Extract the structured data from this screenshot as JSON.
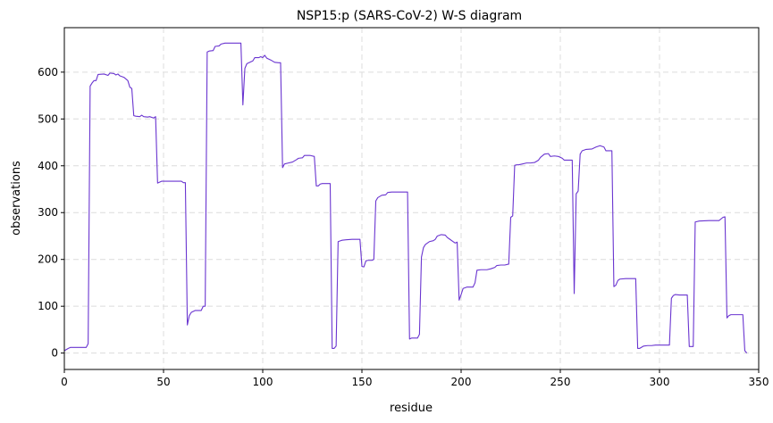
{
  "chart_data": {
    "type": "line",
    "title": "NSP15:p (SARS-CoV-2) W-S diagram",
    "xlabel": "residue",
    "ylabel": "observations",
    "xlim": [
      0,
      350
    ],
    "ylim": [
      -35,
      695
    ],
    "xticks": [
      0,
      50,
      100,
      150,
      200,
      250,
      300,
      350
    ],
    "yticks": [
      0,
      100,
      200,
      300,
      400,
      500,
      600
    ],
    "grid": true,
    "legend": "none",
    "series": [
      {
        "color": "#6a35d0",
        "points": [
          [
            0,
            5
          ],
          [
            2,
            10
          ],
          [
            3,
            12
          ],
          [
            7,
            12
          ],
          [
            11,
            12
          ],
          [
            12,
            20
          ],
          [
            13,
            570
          ],
          [
            14,
            577
          ],
          [
            15,
            582
          ],
          [
            16,
            582
          ],
          [
            17,
            595
          ],
          [
            20,
            596
          ],
          [
            22,
            593
          ],
          [
            23,
            598
          ],
          [
            25,
            597
          ],
          [
            26,
            594
          ],
          [
            27,
            596
          ],
          [
            28,
            592
          ],
          [
            30,
            589
          ],
          [
            32,
            582
          ],
          [
            33,
            568
          ],
          [
            34,
            565
          ],
          [
            35,
            507
          ],
          [
            36,
            506
          ],
          [
            38,
            505
          ],
          [
            39,
            508
          ],
          [
            40,
            505
          ],
          [
            42,
            504
          ],
          [
            43,
            505
          ],
          [
            45,
            502
          ],
          [
            46,
            505
          ],
          [
            47,
            363
          ],
          [
            48,
            365
          ],
          [
            49,
            367
          ],
          [
            55,
            367
          ],
          [
            59,
            367
          ],
          [
            60,
            364
          ],
          [
            61,
            364
          ],
          [
            62,
            60
          ],
          [
            63,
            80
          ],
          [
            64,
            87
          ],
          [
            66,
            91
          ],
          [
            69,
            91
          ],
          [
            70,
            100
          ],
          [
            71,
            100
          ],
          [
            72,
            643
          ],
          [
            73,
            645
          ],
          [
            75,
            646
          ],
          [
            76,
            655
          ],
          [
            78,
            656
          ],
          [
            79,
            660
          ],
          [
            81,
            662
          ],
          [
            88,
            662
          ],
          [
            89,
            662
          ],
          [
            90,
            530
          ],
          [
            91,
            608
          ],
          [
            92,
            618
          ],
          [
            94,
            622
          ],
          [
            95,
            624
          ],
          [
            96,
            631
          ],
          [
            98,
            631
          ],
          [
            99,
            633
          ],
          [
            100,
            631
          ],
          [
            101,
            636
          ],
          [
            102,
            630
          ],
          [
            104,
            626
          ],
          [
            106,
            621
          ],
          [
            108,
            620
          ],
          [
            109,
            620
          ],
          [
            110,
            396
          ],
          [
            111,
            404
          ],
          [
            113,
            406
          ],
          [
            115,
            408
          ],
          [
            117,
            413
          ],
          [
            118,
            416
          ],
          [
            120,
            417
          ],
          [
            121,
            422
          ],
          [
            124,
            422
          ],
          [
            126,
            420
          ],
          [
            127,
            357
          ],
          [
            128,
            357
          ],
          [
            129,
            361
          ],
          [
            130,
            362
          ],
          [
            133,
            362
          ],
          [
            134,
            362
          ],
          [
            135,
            10
          ],
          [
            136,
            10
          ],
          [
            137,
            15
          ],
          [
            138,
            238
          ],
          [
            140,
            241
          ],
          [
            142,
            242
          ],
          [
            145,
            243
          ],
          [
            148,
            243
          ],
          [
            149,
            243
          ],
          [
            150,
            185
          ],
          [
            151,
            184
          ],
          [
            152,
            197
          ],
          [
            153,
            198
          ],
          [
            155,
            198
          ],
          [
            156,
            200
          ],
          [
            157,
            325
          ],
          [
            158,
            332
          ],
          [
            160,
            337
          ],
          [
            162,
            338
          ],
          [
            163,
            343
          ],
          [
            165,
            344
          ],
          [
            170,
            344
          ],
          [
            173,
            344
          ],
          [
            174,
            30
          ],
          [
            175,
            32
          ],
          [
            178,
            32
          ],
          [
            179,
            40
          ],
          [
            180,
            205
          ],
          [
            181,
            225
          ],
          [
            182,
            232
          ],
          [
            184,
            238
          ],
          [
            186,
            240
          ],
          [
            187,
            243
          ],
          [
            188,
            250
          ],
          [
            190,
            253
          ],
          [
            192,
            252
          ],
          [
            193,
            247
          ],
          [
            194,
            244
          ],
          [
            196,
            238
          ],
          [
            197,
            235
          ],
          [
            198,
            237
          ],
          [
            199,
            113
          ],
          [
            200,
            125
          ],
          [
            201,
            138
          ],
          [
            203,
            141
          ],
          [
            205,
            141
          ],
          [
            206,
            141
          ],
          [
            207,
            150
          ],
          [
            208,
            177
          ],
          [
            210,
            178
          ],
          [
            213,
            178
          ],
          [
            215,
            180
          ],
          [
            217,
            183
          ],
          [
            218,
            187
          ],
          [
            220,
            188
          ],
          [
            222,
            188
          ],
          [
            224,
            190
          ],
          [
            225,
            290
          ],
          [
            226,
            293
          ],
          [
            227,
            401
          ],
          [
            228,
            402
          ],
          [
            229,
            402
          ],
          [
            231,
            404
          ],
          [
            233,
            406
          ],
          [
            235,
            406
          ],
          [
            237,
            407
          ],
          [
            239,
            412
          ],
          [
            240,
            418
          ],
          [
            242,
            425
          ],
          [
            244,
            426
          ],
          [
            245,
            420
          ],
          [
            247,
            421
          ],
          [
            249,
            420
          ],
          [
            251,
            416
          ],
          [
            252,
            412
          ],
          [
            256,
            412
          ],
          [
            257,
            127
          ],
          [
            258,
            340
          ],
          [
            259,
            346
          ],
          [
            260,
            425
          ],
          [
            261,
            432
          ],
          [
            263,
            435
          ],
          [
            266,
            436
          ],
          [
            268,
            440
          ],
          [
            270,
            443
          ],
          [
            272,
            440
          ],
          [
            273,
            432
          ],
          [
            276,
            432
          ],
          [
            277,
            142
          ],
          [
            278,
            145
          ],
          [
            279,
            155
          ],
          [
            280,
            158
          ],
          [
            283,
            159
          ],
          [
            286,
            159
          ],
          [
            288,
            159
          ],
          [
            289,
            10
          ],
          [
            290,
            10
          ],
          [
            292,
            15
          ],
          [
            294,
            16
          ],
          [
            296,
            16
          ],
          [
            298,
            17
          ],
          [
            300,
            17
          ],
          [
            302,
            17
          ],
          [
            304,
            17
          ],
          [
            305,
            17
          ],
          [
            306,
            117
          ],
          [
            307,
            123
          ],
          [
            308,
            125
          ],
          [
            310,
            124
          ],
          [
            313,
            124
          ],
          [
            314,
            124
          ],
          [
            315,
            14
          ],
          [
            316,
            14
          ],
          [
            317,
            14
          ],
          [
            318,
            280
          ],
          [
            320,
            282
          ],
          [
            325,
            283
          ],
          [
            330,
            283
          ],
          [
            332,
            290
          ],
          [
            333,
            291
          ],
          [
            334,
            75
          ],
          [
            335,
            80
          ],
          [
            336,
            82
          ],
          [
            340,
            82
          ],
          [
            342,
            82
          ],
          [
            343,
            5
          ],
          [
            344,
            0
          ]
        ]
      }
    ]
  }
}
